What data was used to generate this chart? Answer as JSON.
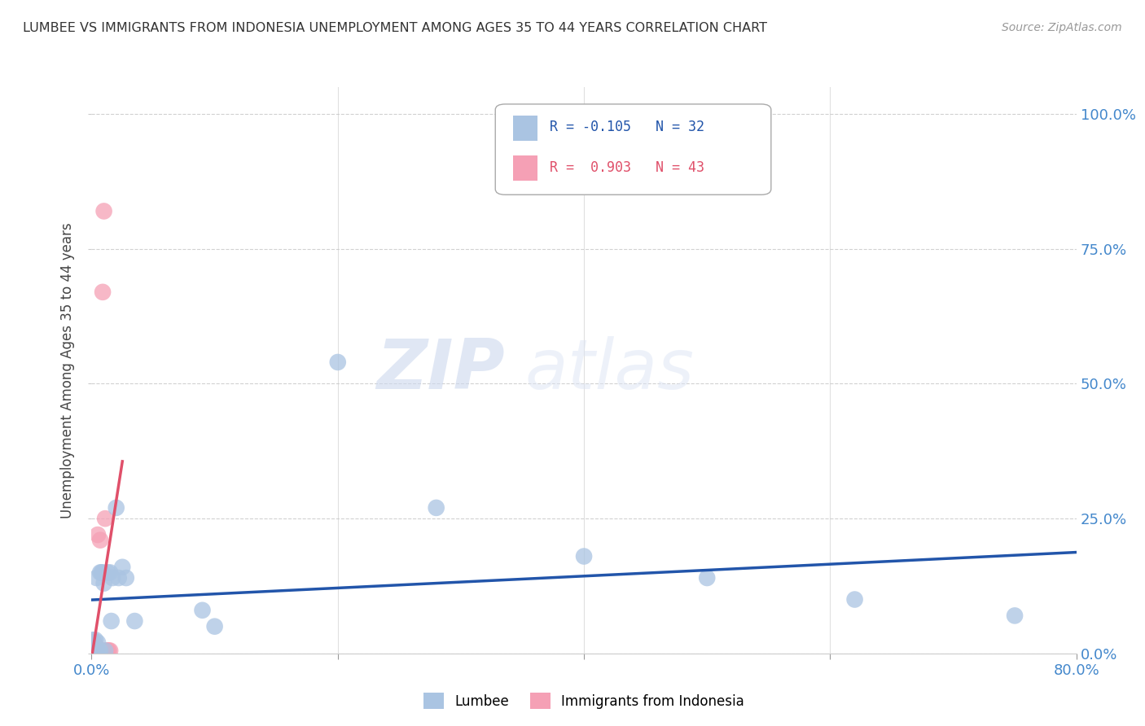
{
  "title": "LUMBEE VS IMMIGRANTS FROM INDONESIA UNEMPLOYMENT AMONG AGES 35 TO 44 YEARS CORRELATION CHART",
  "source": "Source: ZipAtlas.com",
  "ylabel": "Unemployment Among Ages 35 to 44 years",
  "legend_lumbee": "Lumbee",
  "legend_indonesia": "Immigrants from Indonesia",
  "R_lumbee": "-0.105",
  "N_lumbee": "32",
  "R_indonesia": "0.903",
  "N_indonesia": "43",
  "lumbee_color": "#aac4e2",
  "indonesia_color": "#f5a0b5",
  "lumbee_line_color": "#2255aa",
  "indonesia_line_color": "#e0506a",
  "watermark_zip": "ZIP",
  "watermark_atlas": "atlas",
  "lumbee_x": [
    0.001,
    0.002,
    0.002,
    0.003,
    0.003,
    0.004,
    0.004,
    0.005,
    0.006,
    0.007,
    0.007,
    0.008,
    0.009,
    0.01,
    0.011,
    0.013,
    0.015,
    0.016,
    0.017,
    0.02,
    0.022,
    0.025,
    0.028,
    0.035,
    0.09,
    0.1,
    0.2,
    0.28,
    0.4,
    0.5,
    0.62,
    0.75
  ],
  "lumbee_y": [
    0.025,
    0.01,
    0.005,
    0.025,
    0.005,
    0.005,
    0.14,
    0.02,
    0.005,
    0.005,
    0.15,
    0.15,
    0.15,
    0.13,
    0.005,
    0.15,
    0.15,
    0.06,
    0.14,
    0.27,
    0.14,
    0.16,
    0.14,
    0.06,
    0.08,
    0.05,
    0.54,
    0.27,
    0.18,
    0.14,
    0.1,
    0.07
  ],
  "indonesia_x": [
    0.0005,
    0.0005,
    0.0005,
    0.001,
    0.001,
    0.001,
    0.001,
    0.001,
    0.001,
    0.0015,
    0.0015,
    0.002,
    0.002,
    0.002,
    0.002,
    0.002,
    0.002,
    0.0025,
    0.003,
    0.003,
    0.003,
    0.003,
    0.003,
    0.003,
    0.004,
    0.004,
    0.004,
    0.005,
    0.005,
    0.005,
    0.005,
    0.006,
    0.006,
    0.007,
    0.007,
    0.008,
    0.009,
    0.01,
    0.011,
    0.012,
    0.013,
    0.014,
    0.015
  ],
  "indonesia_y": [
    0.005,
    0.01,
    0.02,
    0.005,
    0.005,
    0.01,
    0.02,
    0.01,
    0.005,
    0.005,
    0.01,
    0.005,
    0.005,
    0.01,
    0.015,
    0.02,
    0.005,
    0.005,
    0.005,
    0.005,
    0.01,
    0.015,
    0.005,
    0.005,
    0.005,
    0.005,
    0.005,
    0.22,
    0.005,
    0.005,
    0.005,
    0.005,
    0.005,
    0.005,
    0.21,
    0.005,
    0.67,
    0.82,
    0.25,
    0.005,
    0.005,
    0.005,
    0.005
  ],
  "xlim": [
    0.0,
    0.8
  ],
  "ylim": [
    0.0,
    1.05
  ],
  "xticks": [
    0.0,
    0.2,
    0.4,
    0.6,
    0.8
  ],
  "yticks": [
    0.0,
    0.25,
    0.5,
    0.75,
    1.0
  ],
  "right_ytick_labels": [
    "0.0%",
    "25.0%",
    "50.0%",
    "75.0%",
    "100.0%"
  ],
  "bottom_xtick_labels": [
    "0.0%",
    "",
    "",
    "",
    "80.0%"
  ]
}
